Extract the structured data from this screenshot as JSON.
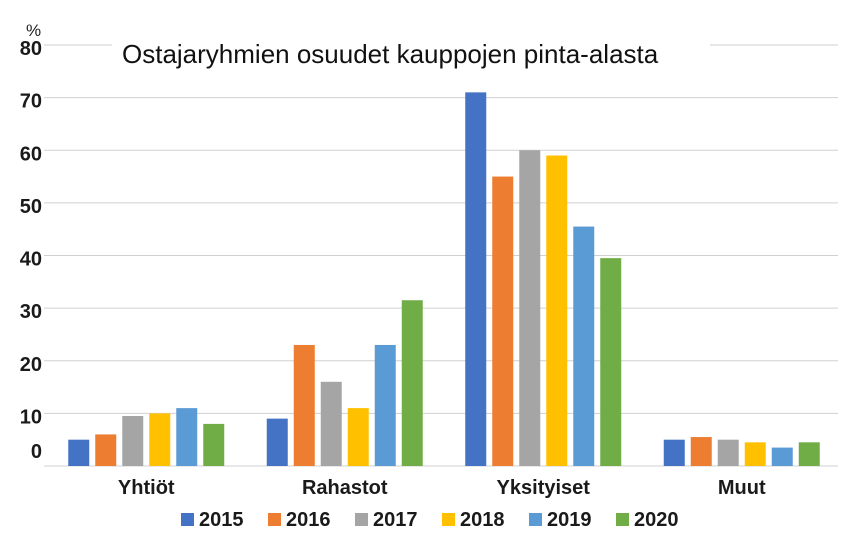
{
  "chart_data": {
    "type": "bar",
    "title": "Ostajaryhmien osuudet kauppojen pinta-alasta",
    "ylabel": "%",
    "xlabel": "",
    "ylim": [
      0,
      80
    ],
    "yticks": [
      0,
      10,
      20,
      30,
      40,
      50,
      60,
      70,
      80
    ],
    "grid": true,
    "legend_position": "bottom",
    "categories": [
      "Yhtiöt",
      "Rahastot",
      "Yksityiset",
      "Muut"
    ],
    "series": [
      {
        "name": "2015",
        "color": "#4472C4",
        "values": [
          5,
          9,
          71,
          5
        ]
      },
      {
        "name": "2016",
        "color": "#ED7D31",
        "values": [
          6,
          23,
          55,
          5.5
        ]
      },
      {
        "name": "2017",
        "color": "#A5A5A5",
        "values": [
          9.5,
          16,
          60,
          5
        ]
      },
      {
        "name": "2018",
        "color": "#FFC000",
        "values": [
          10,
          11,
          59,
          4.5
        ]
      },
      {
        "name": "2019",
        "color": "#5B9BD5",
        "values": [
          11,
          23,
          45.5,
          3.5
        ]
      },
      {
        "name": "2020",
        "color": "#70AD47",
        "values": [
          8,
          31.5,
          39.5,
          4.5
        ]
      }
    ]
  }
}
